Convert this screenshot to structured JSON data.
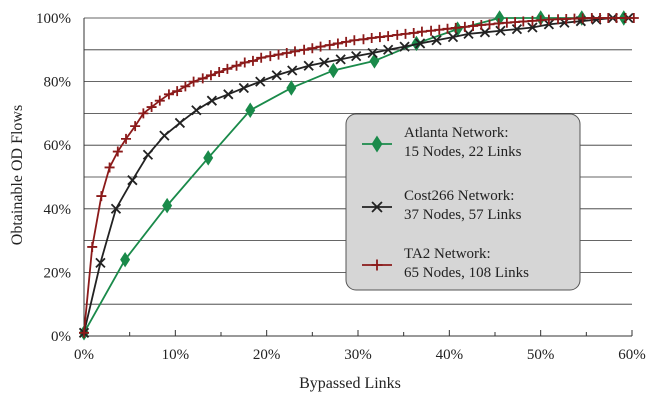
{
  "chart_data": {
    "type": "line",
    "title": "",
    "xlabel": "Bypassed Links",
    "ylabel": "Obtainable OD Flows",
    "xlim": [
      0,
      60
    ],
    "ylim": [
      0,
      100
    ],
    "x_ticks": [
      "0%",
      "10%",
      "20%",
      "30%",
      "40%",
      "50%",
      "60%"
    ],
    "y_ticks": [
      "0%",
      "20%",
      "40%",
      "60%",
      "80%",
      "100%"
    ],
    "grid": "horizontal",
    "legend_position": "right",
    "series": [
      {
        "name": "Atlanta Network:",
        "sublabel": "15 Nodes, 22 Links",
        "color": "#1a8a4a",
        "marker": "diamond",
        "x": [
          0,
          4.5,
          9.1,
          13.6,
          18.2,
          22.7,
          27.3,
          31.8,
          36.4,
          40.9,
          45.5,
          50.0,
          54.5,
          59.1
        ],
        "y": [
          1,
          24,
          41,
          56,
          71,
          78,
          83.5,
          86.5,
          92,
          96.5,
          100,
          100,
          100,
          100
        ]
      },
      {
        "name": "Cost266 Network:",
        "sublabel": "37 Nodes, 57 Links",
        "color": "#222222",
        "marker": "x",
        "x": [
          0,
          1.8,
          3.5,
          5.3,
          7.0,
          8.8,
          10.5,
          12.3,
          14.0,
          15.8,
          17.5,
          19.3,
          21.1,
          22.8,
          24.6,
          26.3,
          28.1,
          29.8,
          31.6,
          33.3,
          35.1,
          36.8,
          38.6,
          40.4,
          42.1,
          43.9,
          45.6,
          47.4,
          49.1,
          50.9,
          52.6,
          54.4,
          56.1,
          57.9,
          59.6
        ],
        "y": [
          1,
          23,
          40,
          49,
          57,
          63,
          67,
          71,
          74,
          76,
          78,
          80,
          82,
          83.5,
          85,
          86,
          87,
          88,
          89,
          90,
          91,
          92,
          93,
          94,
          95,
          95.5,
          96,
          96.5,
          97,
          98,
          98.5,
          99,
          99.5,
          100,
          100
        ]
      },
      {
        "name": "TA2 Network:",
        "sublabel": "65 Nodes, 108 Links",
        "color": "#8b1a1a",
        "marker": "plus",
        "x": [
          0,
          0.9,
          1.9,
          2.8,
          3.7,
          4.6,
          5.6,
          6.5,
          7.4,
          8.3,
          9.3,
          10.2,
          11.1,
          12.0,
          13.0,
          13.9,
          14.8,
          15.7,
          16.7,
          17.6,
          18.5,
          19.4,
          20.4,
          21.3,
          22.2,
          23.1,
          24.1,
          25.0,
          25.9,
          26.9,
          27.8,
          28.7,
          29.6,
          30.6,
          31.5,
          32.4,
          33.3,
          34.3,
          35.2,
          36.1,
          37.0,
          38.0,
          38.9,
          39.8,
          40.7,
          41.7,
          42.6,
          43.5,
          44.4,
          45.4,
          46.3,
          47.2,
          48.1,
          49.1,
          50.0,
          50.9,
          51.9,
          52.8,
          53.7,
          54.6,
          55.6,
          56.5,
          57.4,
          58.3,
          59.3,
          60.2
        ],
        "y": [
          1,
          28,
          44,
          53,
          58,
          62,
          66,
          70,
          72,
          74,
          76,
          77,
          78.5,
          80,
          81,
          82,
          83,
          84,
          85,
          86,
          86.5,
          87.5,
          88,
          88.5,
          89,
          89.5,
          90,
          90.5,
          91,
          91.5,
          92,
          92.5,
          93,
          93.3,
          93.7,
          94,
          94.3,
          94.7,
          95,
          95.3,
          95.7,
          96,
          96.3,
          96.6,
          96.9,
          97.2,
          97.5,
          97.8,
          98,
          98.3,
          98.5,
          98.7,
          98.9,
          99.1,
          99.3,
          99.5,
          99.6,
          99.7,
          99.8,
          99.9,
          100,
          100,
          100,
          100,
          100,
          100
        ]
      }
    ]
  }
}
